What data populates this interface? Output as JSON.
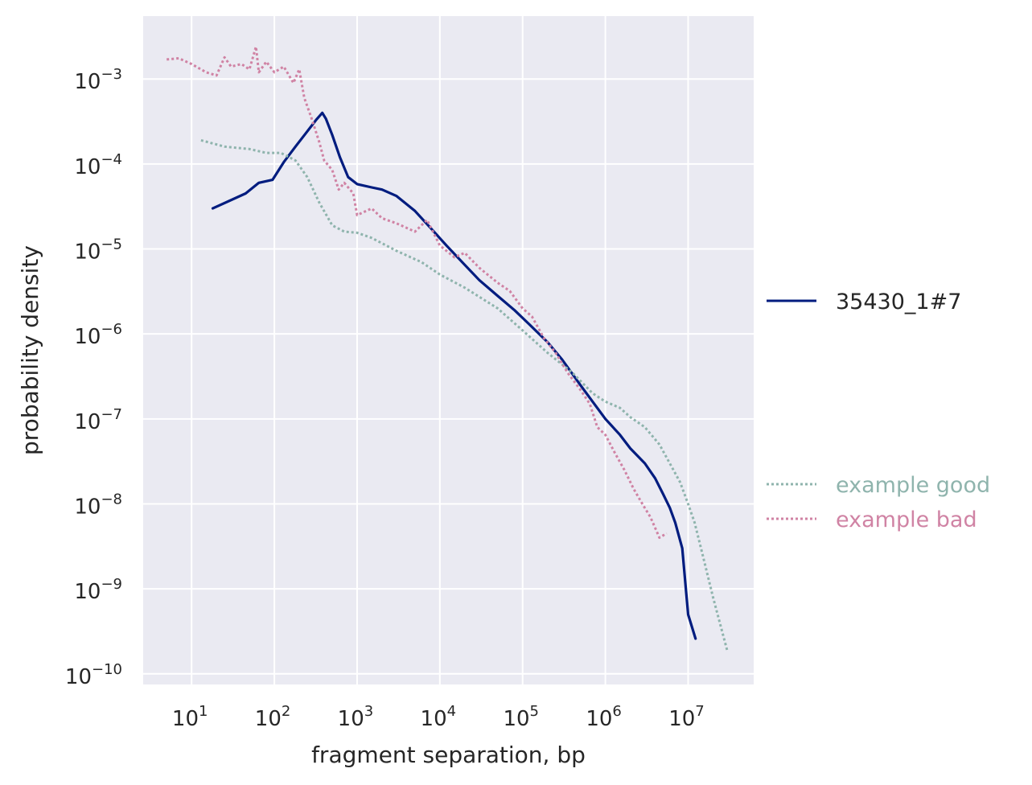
{
  "chart_data": {
    "type": "line",
    "title": "",
    "xlabel": "fragment separation, bp",
    "ylabel": "probability density",
    "xscale": "log",
    "yscale": "log",
    "xlim": [
      2.6,
      62000000
    ],
    "ylim": [
      7.5e-11,
      0.0055
    ],
    "grid": true,
    "legend_placement": "right, outside plot",
    "x_ticks": [
      {
        "value": 10,
        "base": "10",
        "exp": "1"
      },
      {
        "value": 100,
        "base": "10",
        "exp": "2"
      },
      {
        "value": 1000,
        "base": "10",
        "exp": "3"
      },
      {
        "value": 10000,
        "base": "10",
        "exp": "4"
      },
      {
        "value": 100000,
        "base": "10",
        "exp": "5"
      },
      {
        "value": 1000000,
        "base": "10",
        "exp": "6"
      },
      {
        "value": 10000000,
        "base": "10",
        "exp": "7"
      }
    ],
    "y_ticks": [
      {
        "value": 0.001,
        "base": "10",
        "exp": "−3"
      },
      {
        "value": 0.0001,
        "base": "10",
        "exp": "−4"
      },
      {
        "value": 1e-05,
        "base": "10",
        "exp": "−5"
      },
      {
        "value": 1e-06,
        "base": "10",
        "exp": "−6"
      },
      {
        "value": 1e-07,
        "base": "10",
        "exp": "−7"
      },
      {
        "value": 1e-08,
        "base": "10",
        "exp": "−8"
      },
      {
        "value": 1e-09,
        "base": "10",
        "exp": "−9"
      },
      {
        "value": 1e-10,
        "base": "10",
        "exp": "−10"
      }
    ],
    "series": [
      {
        "name": "35430_1#7",
        "color": "#001c7f",
        "style": "solid",
        "legend_group": "main",
        "points": [
          [
            18,
            3e-05
          ],
          [
            45,
            4.5e-05
          ],
          [
            65,
            6e-05
          ],
          [
            95,
            6.5e-05
          ],
          [
            130,
            0.000105
          ],
          [
            180,
            0.00016
          ],
          [
            240,
            0.00023
          ],
          [
            320,
            0.00033
          ],
          [
            380,
            0.0004
          ],
          [
            420,
            0.00034
          ],
          [
            500,
            0.00022
          ],
          [
            620,
            0.00012
          ],
          [
            780,
            7e-05
          ],
          [
            1000,
            5.8e-05
          ],
          [
            1500,
            5.3e-05
          ],
          [
            2000,
            5e-05
          ],
          [
            3000,
            4.2e-05
          ],
          [
            5000,
            2.8e-05
          ],
          [
            8000,
            1.7e-05
          ],
          [
            12000,
            1.1e-05
          ],
          [
            20000,
            6.5e-06
          ],
          [
            30000,
            4.3e-06
          ],
          [
            50000,
            2.8e-06
          ],
          [
            80000,
            1.9e-06
          ],
          [
            120000,
            1.3e-06
          ],
          [
            200000,
            8e-07
          ],
          [
            300000,
            5e-07
          ],
          [
            500000,
            2.5e-07
          ],
          [
            700000,
            1.6e-07
          ],
          [
            1000000,
            1e-07
          ],
          [
            1500000,
            6.5e-08
          ],
          [
            2000000,
            4.5e-08
          ],
          [
            3000000,
            3e-08
          ],
          [
            4000000,
            2e-08
          ],
          [
            5000000,
            1.3e-08
          ],
          [
            6000000,
            9e-09
          ],
          [
            7000000,
            6e-09
          ],
          [
            8500000,
            3e-09
          ],
          [
            10000000,
            5e-10
          ],
          [
            12300000,
            2.6e-10
          ]
        ]
      },
      {
        "name": "example good",
        "color": "#8fb4ad",
        "style": "dotted",
        "legend_group": "examples",
        "points": [
          [
            13,
            0.00019
          ],
          [
            25,
            0.00016
          ],
          [
            50,
            0.00015
          ],
          [
            80,
            0.000135
          ],
          [
            120,
            0.000135
          ],
          [
            180,
            0.00011
          ],
          [
            250,
            7e-05
          ],
          [
            350,
            3.5e-05
          ],
          [
            500,
            1.9e-05
          ],
          [
            700,
            1.6e-05
          ],
          [
            1000,
            1.55e-05
          ],
          [
            1500,
            1.35e-05
          ],
          [
            3000,
            9.5e-06
          ],
          [
            6000,
            7e-06
          ],
          [
            10000,
            5e-06
          ],
          [
            20000,
            3.5e-06
          ],
          [
            50000,
            2e-06
          ],
          [
            100000,
            1.1e-06
          ],
          [
            200000,
            6e-07
          ],
          [
            400000,
            3.5e-07
          ],
          [
            700000,
            2e-07
          ],
          [
            1000000,
            1.6e-07
          ],
          [
            1500000,
            1.35e-07
          ],
          [
            2000000,
            1.05e-07
          ],
          [
            3000000,
            8e-08
          ],
          [
            4500000,
            5e-08
          ],
          [
            6000000,
            3e-08
          ],
          [
            8000000,
            1.8e-08
          ],
          [
            10000000,
            1e-08
          ],
          [
            12000000,
            6e-09
          ],
          [
            15000000,
            2.5e-09
          ],
          [
            20000000,
            8e-10
          ],
          [
            30000000,
            1.8e-10
          ]
        ]
      },
      {
        "name": "example bad",
        "color": "#d083a4",
        "style": "dotted",
        "legend_group": "examples",
        "points": [
          [
            5,
            0.0017
          ],
          [
            7,
            0.00175
          ],
          [
            10,
            0.0015
          ],
          [
            15,
            0.0012
          ],
          [
            20,
            0.0011
          ],
          [
            25,
            0.0018
          ],
          [
            30,
            0.0014
          ],
          [
            40,
            0.0015
          ],
          [
            50,
            0.0013
          ],
          [
            60,
            0.0024
          ],
          [
            65,
            0.0012
          ],
          [
            80,
            0.0016
          ],
          [
            100,
            0.0012
          ],
          [
            130,
            0.0014
          ],
          [
            170,
            0.0009
          ],
          [
            200,
            0.0013
          ],
          [
            230,
            0.0006
          ],
          [
            280,
            0.00035
          ],
          [
            350,
            0.00018
          ],
          [
            400,
            0.00011
          ],
          [
            500,
            8.5e-05
          ],
          [
            600,
            5e-05
          ],
          [
            700,
            6e-05
          ],
          [
            900,
            4.5e-05
          ],
          [
            1000,
            2.5e-05
          ],
          [
            1500,
            3e-05
          ],
          [
            2000,
            2.3e-05
          ],
          [
            3000,
            2e-05
          ],
          [
            5000,
            1.6e-05
          ],
          [
            7000,
            2.2e-05
          ],
          [
            10000,
            1.1e-05
          ],
          [
            15000,
            8e-06
          ],
          [
            20000,
            9e-06
          ],
          [
            30000,
            6e-06
          ],
          [
            50000,
            4e-06
          ],
          [
            70000,
            3.2e-06
          ],
          [
            100000,
            2e-06
          ],
          [
            130000,
            1.6e-06
          ],
          [
            180000,
            9e-07
          ],
          [
            250000,
            6e-07
          ],
          [
            350000,
            3.5e-07
          ],
          [
            500000,
            2.2e-07
          ],
          [
            650000,
            1.5e-07
          ],
          [
            800000,
            8e-08
          ],
          [
            1000000,
            6.5e-08
          ],
          [
            1300000,
            4e-08
          ],
          [
            1700000,
            2.5e-08
          ],
          [
            2200000,
            1.5e-08
          ],
          [
            2800000,
            1e-08
          ],
          [
            3500000,
            7e-09
          ],
          [
            4500000,
            4e-09
          ],
          [
            5500000,
            4.5e-09
          ]
        ]
      }
    ]
  }
}
